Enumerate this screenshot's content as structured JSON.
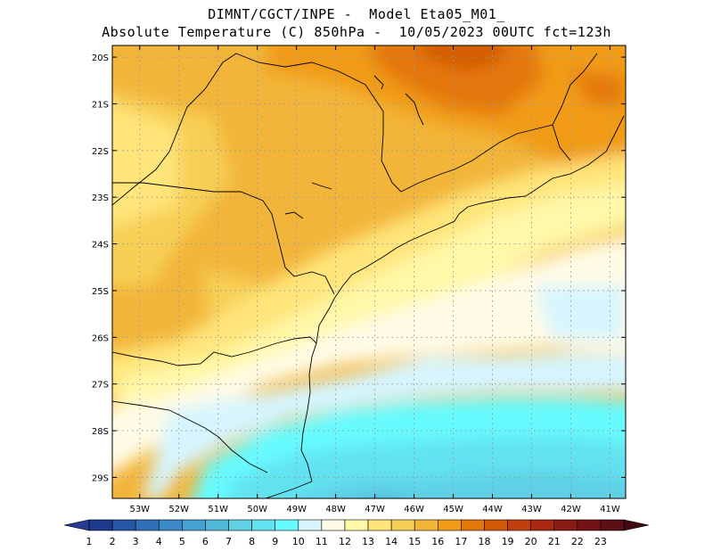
{
  "title": {
    "line1": "DIMNT/CGCT/INPE -  Model Eta05_M01_",
    "line2": "Absolute Temperature (C) 850hPa -  10/05/2023 00UTC fct=123h"
  },
  "map": {
    "lat_labels": [
      "20S",
      "21S",
      "22S",
      "23S",
      "24S",
      "25S",
      "26S",
      "27S",
      "28S",
      "29S"
    ],
    "lon_labels": [
      "53W",
      "52W",
      "51W",
      "50W",
      "49W",
      "48W",
      "47W",
      "46W",
      "45W",
      "44W",
      "43W",
      "42W",
      "41W"
    ],
    "lon_range": [
      -53.7,
      -40.6
    ],
    "lat_range": [
      -29.45,
      -19.75
    ]
  },
  "colorbar": {
    "labels": [
      "1",
      "2",
      "3",
      "4",
      "5",
      "6",
      "7",
      "8",
      "9",
      "10",
      "11",
      "12",
      "13",
      "14",
      "15",
      "16",
      "17",
      "18",
      "19",
      "20",
      "21",
      "22",
      "23"
    ],
    "colors": [
      "#1e3a8c",
      "#2656a6",
      "#2f6fb8",
      "#3a88c6",
      "#45a2d2",
      "#51b8d8",
      "#5fd0e6",
      "#62e2f0",
      "#66fbff",
      "#d6f5ff",
      "#fffbe6",
      "#fff8a8",
      "#ffe57a",
      "#f7cf55",
      "#f2b53a",
      "#f19b18",
      "#e4770a",
      "#d35a06",
      "#c13f0c",
      "#a82910",
      "#8a1a14",
      "#731414",
      "#5a0f14"
    ],
    "under_color": "#283a94",
    "over_color": "#3f0a10"
  }
}
